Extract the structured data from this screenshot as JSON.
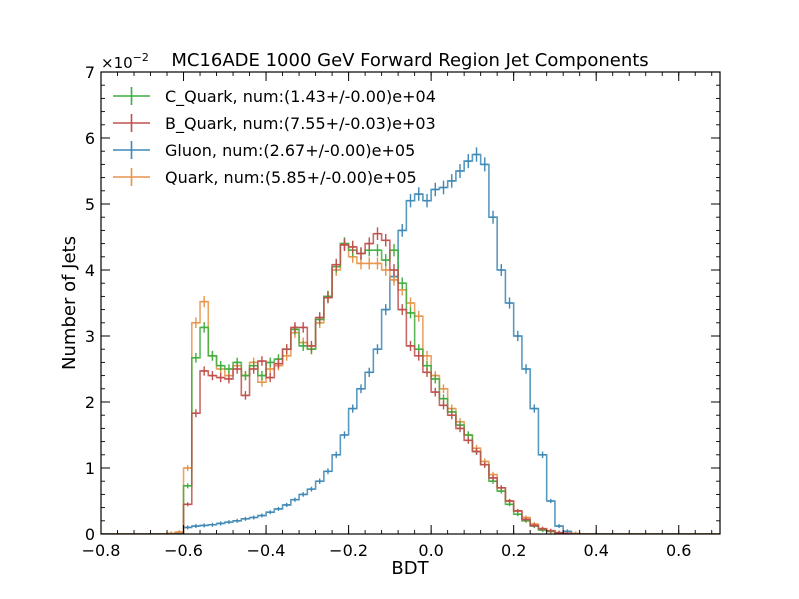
{
  "chart_data": {
    "type": "line",
    "title": "MC16ADE 1000 GeV Forward Region Jet Components",
    "xlabel": "BDT",
    "ylabel": "Number of Jets",
    "y_offset_label": "×10",
    "y_offset_exponent": "−2",
    "xlim": [
      -0.8,
      0.7
    ],
    "ylim": [
      0,
      7
    ],
    "x_ticks": [
      {
        "value": -0.8,
        "label": "−0.8"
      },
      {
        "value": -0.6,
        "label": "−0.6"
      },
      {
        "value": -0.4,
        "label": "−0.4"
      },
      {
        "value": -0.2,
        "label": "−0.2"
      },
      {
        "value": 0.0,
        "label": "0.0"
      },
      {
        "value": 0.2,
        "label": "0.2"
      },
      {
        "value": 0.4,
        "label": "0.4"
      },
      {
        "value": 0.6,
        "label": "0.6"
      }
    ],
    "y_ticks": [
      {
        "value": 0,
        "label": "0"
      },
      {
        "value": 1,
        "label": "1"
      },
      {
        "value": 2,
        "label": "2"
      },
      {
        "value": 3,
        "label": "3"
      },
      {
        "value": 4,
        "label": "4"
      },
      {
        "value": 5,
        "label": "5"
      },
      {
        "value": 6,
        "label": "6"
      },
      {
        "value": 7,
        "label": "7"
      }
    ],
    "grid": false,
    "legend_position": "top-left",
    "bins": {
      "start": -0.8,
      "width": 0.02,
      "count": 75
    },
    "series": [
      {
        "name": "Gluon, num:(2.67+/-0.00)e+05",
        "color": "#3d88b5",
        "values": [
          0,
          0,
          0,
          0,
          0,
          0,
          0,
          0,
          0,
          0.02,
          0.1,
          0.12,
          0.13,
          0.14,
          0.16,
          0.18,
          0.2,
          0.23,
          0.25,
          0.28,
          0.33,
          0.38,
          0.44,
          0.52,
          0.6,
          0.68,
          0.8,
          0.95,
          1.2,
          1.5,
          1.9,
          2.2,
          2.45,
          2.8,
          3.4,
          3.9,
          4.6,
          5.05,
          5.15,
          5.05,
          5.22,
          5.25,
          5.35,
          5.5,
          5.65,
          5.75,
          5.6,
          4.8,
          4.0,
          3.5,
          3.0,
          2.5,
          1.9,
          1.2,
          0.5,
          0.12,
          0.04,
          0,
          0,
          0,
          0,
          0,
          0,
          0,
          0,
          0,
          0,
          0,
          0,
          0,
          0,
          0,
          0,
          0,
          0
        ]
      },
      {
        "name": "Quark, num:(5.85+/-0.00)e+05",
        "color": "#e8944a",
        "values": [
          0,
          0,
          0,
          0,
          0,
          0,
          0,
          0,
          0.01,
          0.03,
          1.0,
          3.2,
          3.52,
          2.7,
          2.5,
          2.4,
          2.55,
          2.4,
          2.6,
          2.3,
          2.5,
          2.55,
          2.7,
          3.05,
          2.9,
          2.8,
          3.2,
          3.6,
          4.0,
          4.4,
          4.2,
          4.1,
          4.1,
          4.1,
          4.0,
          3.85,
          3.7,
          3.5,
          3.3,
          2.7,
          2.4,
          2.2,
          1.9,
          1.7,
          1.5,
          1.3,
          1.1,
          0.9,
          0.7,
          0.5,
          0.35,
          0.25,
          0.15,
          0.08,
          0.04,
          0.02,
          0.01,
          0.01,
          0,
          0,
          0,
          0,
          0,
          0,
          0,
          0,
          0,
          0,
          0,
          0,
          0,
          0,
          0,
          0,
          0
        ]
      },
      {
        "name": "C_Quark, num:(1.43+/-0.00)e+04",
        "color": "#3fae3f",
        "values": [
          0,
          0,
          0,
          0,
          0,
          0,
          0,
          0,
          0,
          0,
          0.73,
          2.67,
          3.13,
          2.7,
          2.55,
          2.5,
          2.6,
          2.4,
          2.55,
          2.4,
          2.6,
          2.65,
          2.8,
          3.1,
          2.85,
          2.8,
          3.25,
          3.6,
          4.05,
          4.4,
          4.3,
          4.25,
          4.3,
          4.3,
          4.15,
          4.3,
          3.8,
          3.35,
          2.8,
          2.55,
          2.35,
          2.05,
          1.85,
          1.65,
          1.5,
          1.25,
          1.05,
          0.8,
          0.65,
          0.45,
          0.3,
          0.2,
          0.12,
          0.06,
          0.04,
          0.01,
          0,
          0,
          0,
          0,
          0,
          0,
          0,
          0,
          0,
          0,
          0,
          0,
          0,
          0,
          0,
          0,
          0,
          0,
          0
        ]
      },
      {
        "name": "B_Quark, num:(7.55+/-0.03)e+03",
        "color": "#c0504d",
        "values": [
          0,
          0,
          0,
          0,
          0,
          0,
          0,
          0,
          0,
          0,
          0.45,
          1.83,
          2.47,
          2.4,
          2.37,
          2.35,
          2.5,
          2.1,
          2.5,
          2.62,
          2.37,
          2.58,
          2.8,
          3.13,
          3.13,
          2.85,
          3.28,
          3.58,
          4.08,
          4.38,
          4.35,
          4.25,
          4.4,
          4.55,
          4.45,
          4.0,
          3.4,
          2.85,
          2.7,
          2.45,
          2.15,
          1.95,
          1.8,
          1.6,
          1.42,
          1.25,
          1.05,
          0.85,
          0.7,
          0.5,
          0.35,
          0.22,
          0.13,
          0.08,
          0.05,
          0.02,
          0.01,
          0,
          0,
          0,
          0,
          0,
          0,
          0,
          0,
          0,
          0,
          0,
          0,
          0,
          0,
          0,
          0,
          0,
          0
        ]
      }
    ],
    "legend_order": [
      2,
      3,
      0,
      1
    ]
  }
}
